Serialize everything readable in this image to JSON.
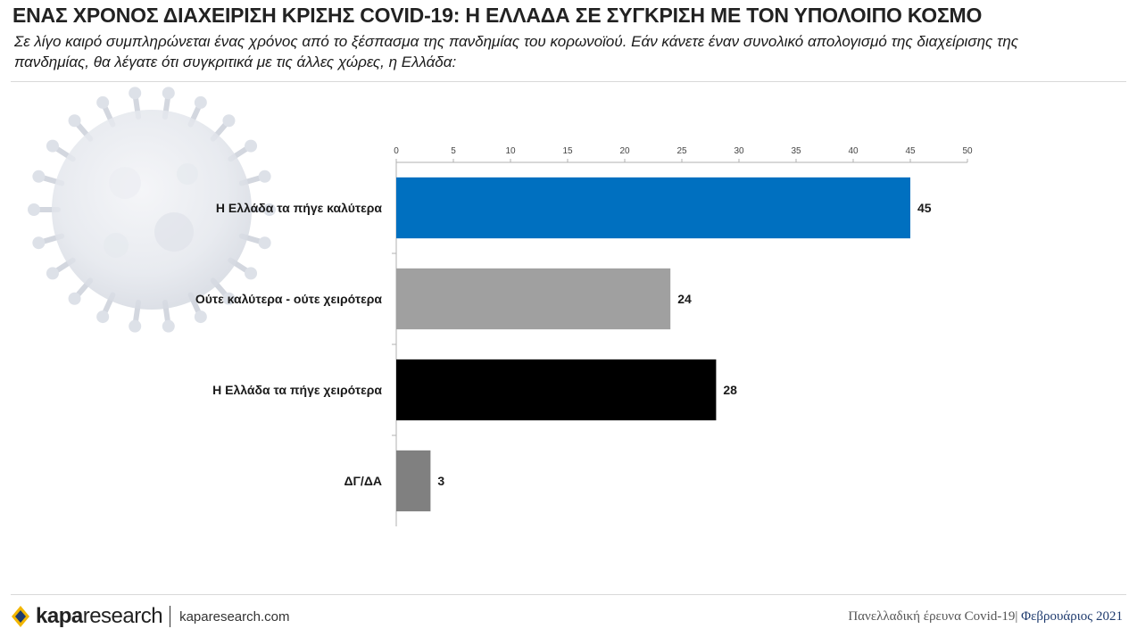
{
  "header": {
    "title": "ΕΝΑΣ ΧΡΟΝΟΣ ΔΙΑΧΕΙΡΙΣΗ ΚΡΙΣΗΣ COVID-19: Η ΕΛΛΑΔΑ ΣΕ ΣΥΓΚΡΙΣΗ ΜΕ ΤΟΝ ΥΠΟΛΟΙΠΟ ΚΟΣΜΟ",
    "subtitle": "Σε λίγο καιρό συμπληρώνεται ένας χρόνος από το ξέσπασμα της πανδημίας του κορωνοϊού. Εάν κάνετε έναν συνολικό απολογισμό της διαχείρισης της πανδημίας, θα λέγατε ότι συγκριτικά με τις άλλες χώρες, η Ελλάδα:"
  },
  "chart_data": {
    "type": "bar",
    "orientation": "horizontal",
    "categories": [
      "Η Ελλάδα τα πήγε καλύτερα",
      "Ούτε καλύτερα - ούτε χειρότερα",
      "Η Ελλάδα τα πήγε χειρότερα",
      "ΔΓ/ΔΑ"
    ],
    "values": [
      45,
      24,
      28,
      3
    ],
    "colors": [
      "#0070c0",
      "#a0a0a0",
      "#000000",
      "#808080"
    ],
    "xlim": [
      0,
      50
    ],
    "xticks": [
      0,
      5,
      10,
      15,
      20,
      25,
      30,
      35,
      40,
      45,
      50
    ],
    "xaxis_position": "top",
    "grid": false,
    "data_labels": true
  },
  "footer": {
    "brand_bold": "kapa",
    "brand_light": "research",
    "url": "kaparesearch.com",
    "survey": "Πανελλαδική έρευνα Covid-19|",
    "date": "Φεβρουάριος 2021"
  },
  "icons": {
    "background": "coronavirus-icon",
    "logo": "kapa-logo-icon"
  }
}
